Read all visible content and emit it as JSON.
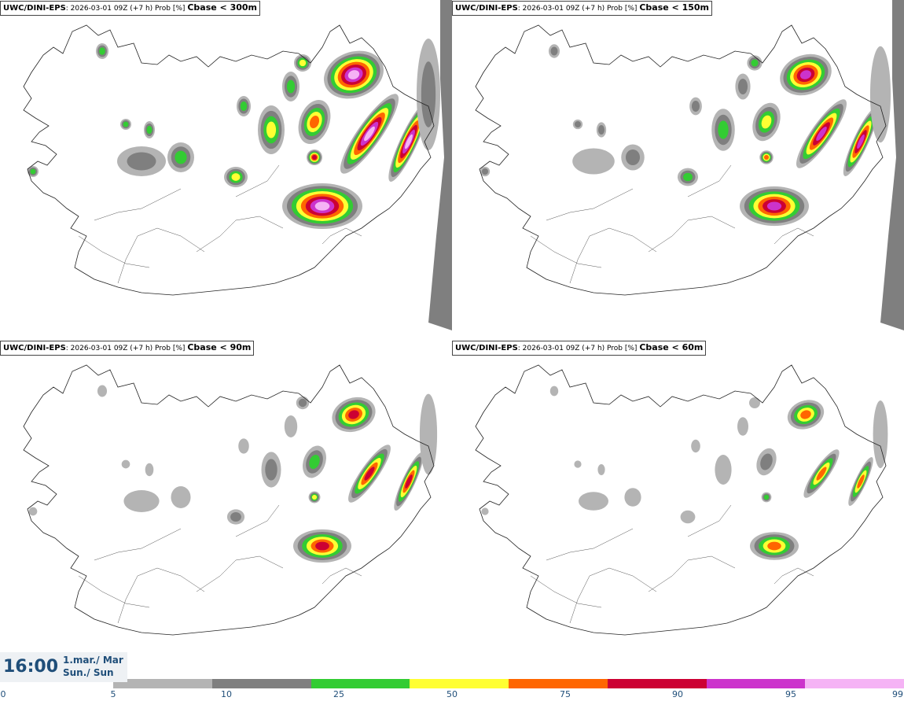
{
  "panels": [
    {
      "model": "UWC/DINI-EPS",
      "info": ": 2026-03-01 09Z (+7 h) Prob [%]",
      "threshold": "Cbase < 300m",
      "intensity": 4
    },
    {
      "model": "UWC/DINI-EPS",
      "info": ": 2026-03-01 09Z (+7 h) Prob [%]",
      "threshold": "Cbase < 150m",
      "intensity": 3
    },
    {
      "model": "UWC/DINI-EPS",
      "info": ": 2026-03-01 09Z (+7 h) Prob [%]",
      "threshold": "Cbase < 90m",
      "intensity": 2
    },
    {
      "model": "UWC/DINI-EPS",
      "info": ": 2026-03-01 09Z (+7 h) Prob [%]",
      "threshold": "Cbase < 60m",
      "intensity": 1
    }
  ],
  "clock": {
    "time": "16:00",
    "date_line1": "1.mar./ Mar",
    "date_line2": "Sun./ Sun"
  },
  "colorbar": {
    "ticks": [
      "0",
      "5",
      "10",
      "25",
      "50",
      "75",
      "90",
      "95",
      "99"
    ],
    "colors": [
      "#b4b4b4",
      "#7f7f7f",
      "#33cc33",
      "#ffff33",
      "#ff6600",
      "#cc0033",
      "#cc33cc",
      "#f5b3f5"
    ]
  }
}
